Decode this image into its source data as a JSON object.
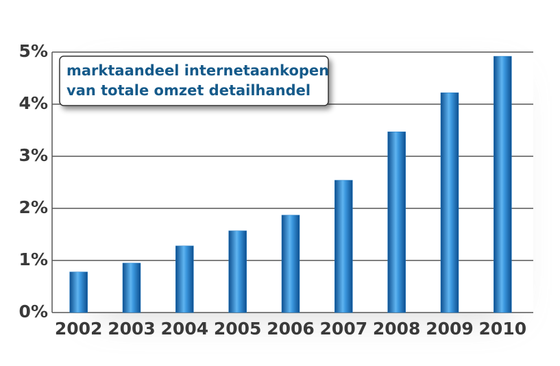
{
  "chart_data": {
    "type": "bar",
    "title": [
      "marktaandeel internetaankopen",
      "van totale omzet detailhandel"
    ],
    "categories": [
      "2002",
      "2003",
      "2004",
      "2005",
      "2006",
      "2007",
      "2008",
      "2009",
      "2010"
    ],
    "values": [
      0.78,
      0.95,
      1.28,
      1.57,
      1.87,
      2.54,
      3.47,
      4.22,
      4.92
    ],
    "color": "#1f7ac4",
    "ylim": [
      0,
      5
    ],
    "yticks": [
      {
        "value": 0,
        "label": "0%"
      },
      {
        "value": 1,
        "label": "1%"
      },
      {
        "value": 2,
        "label": "2%"
      },
      {
        "value": 3,
        "label": "3%"
      },
      {
        "value": 4,
        "label": "4%"
      },
      {
        "value": 5,
        "label": "5%"
      }
    ],
    "grid": true
  }
}
